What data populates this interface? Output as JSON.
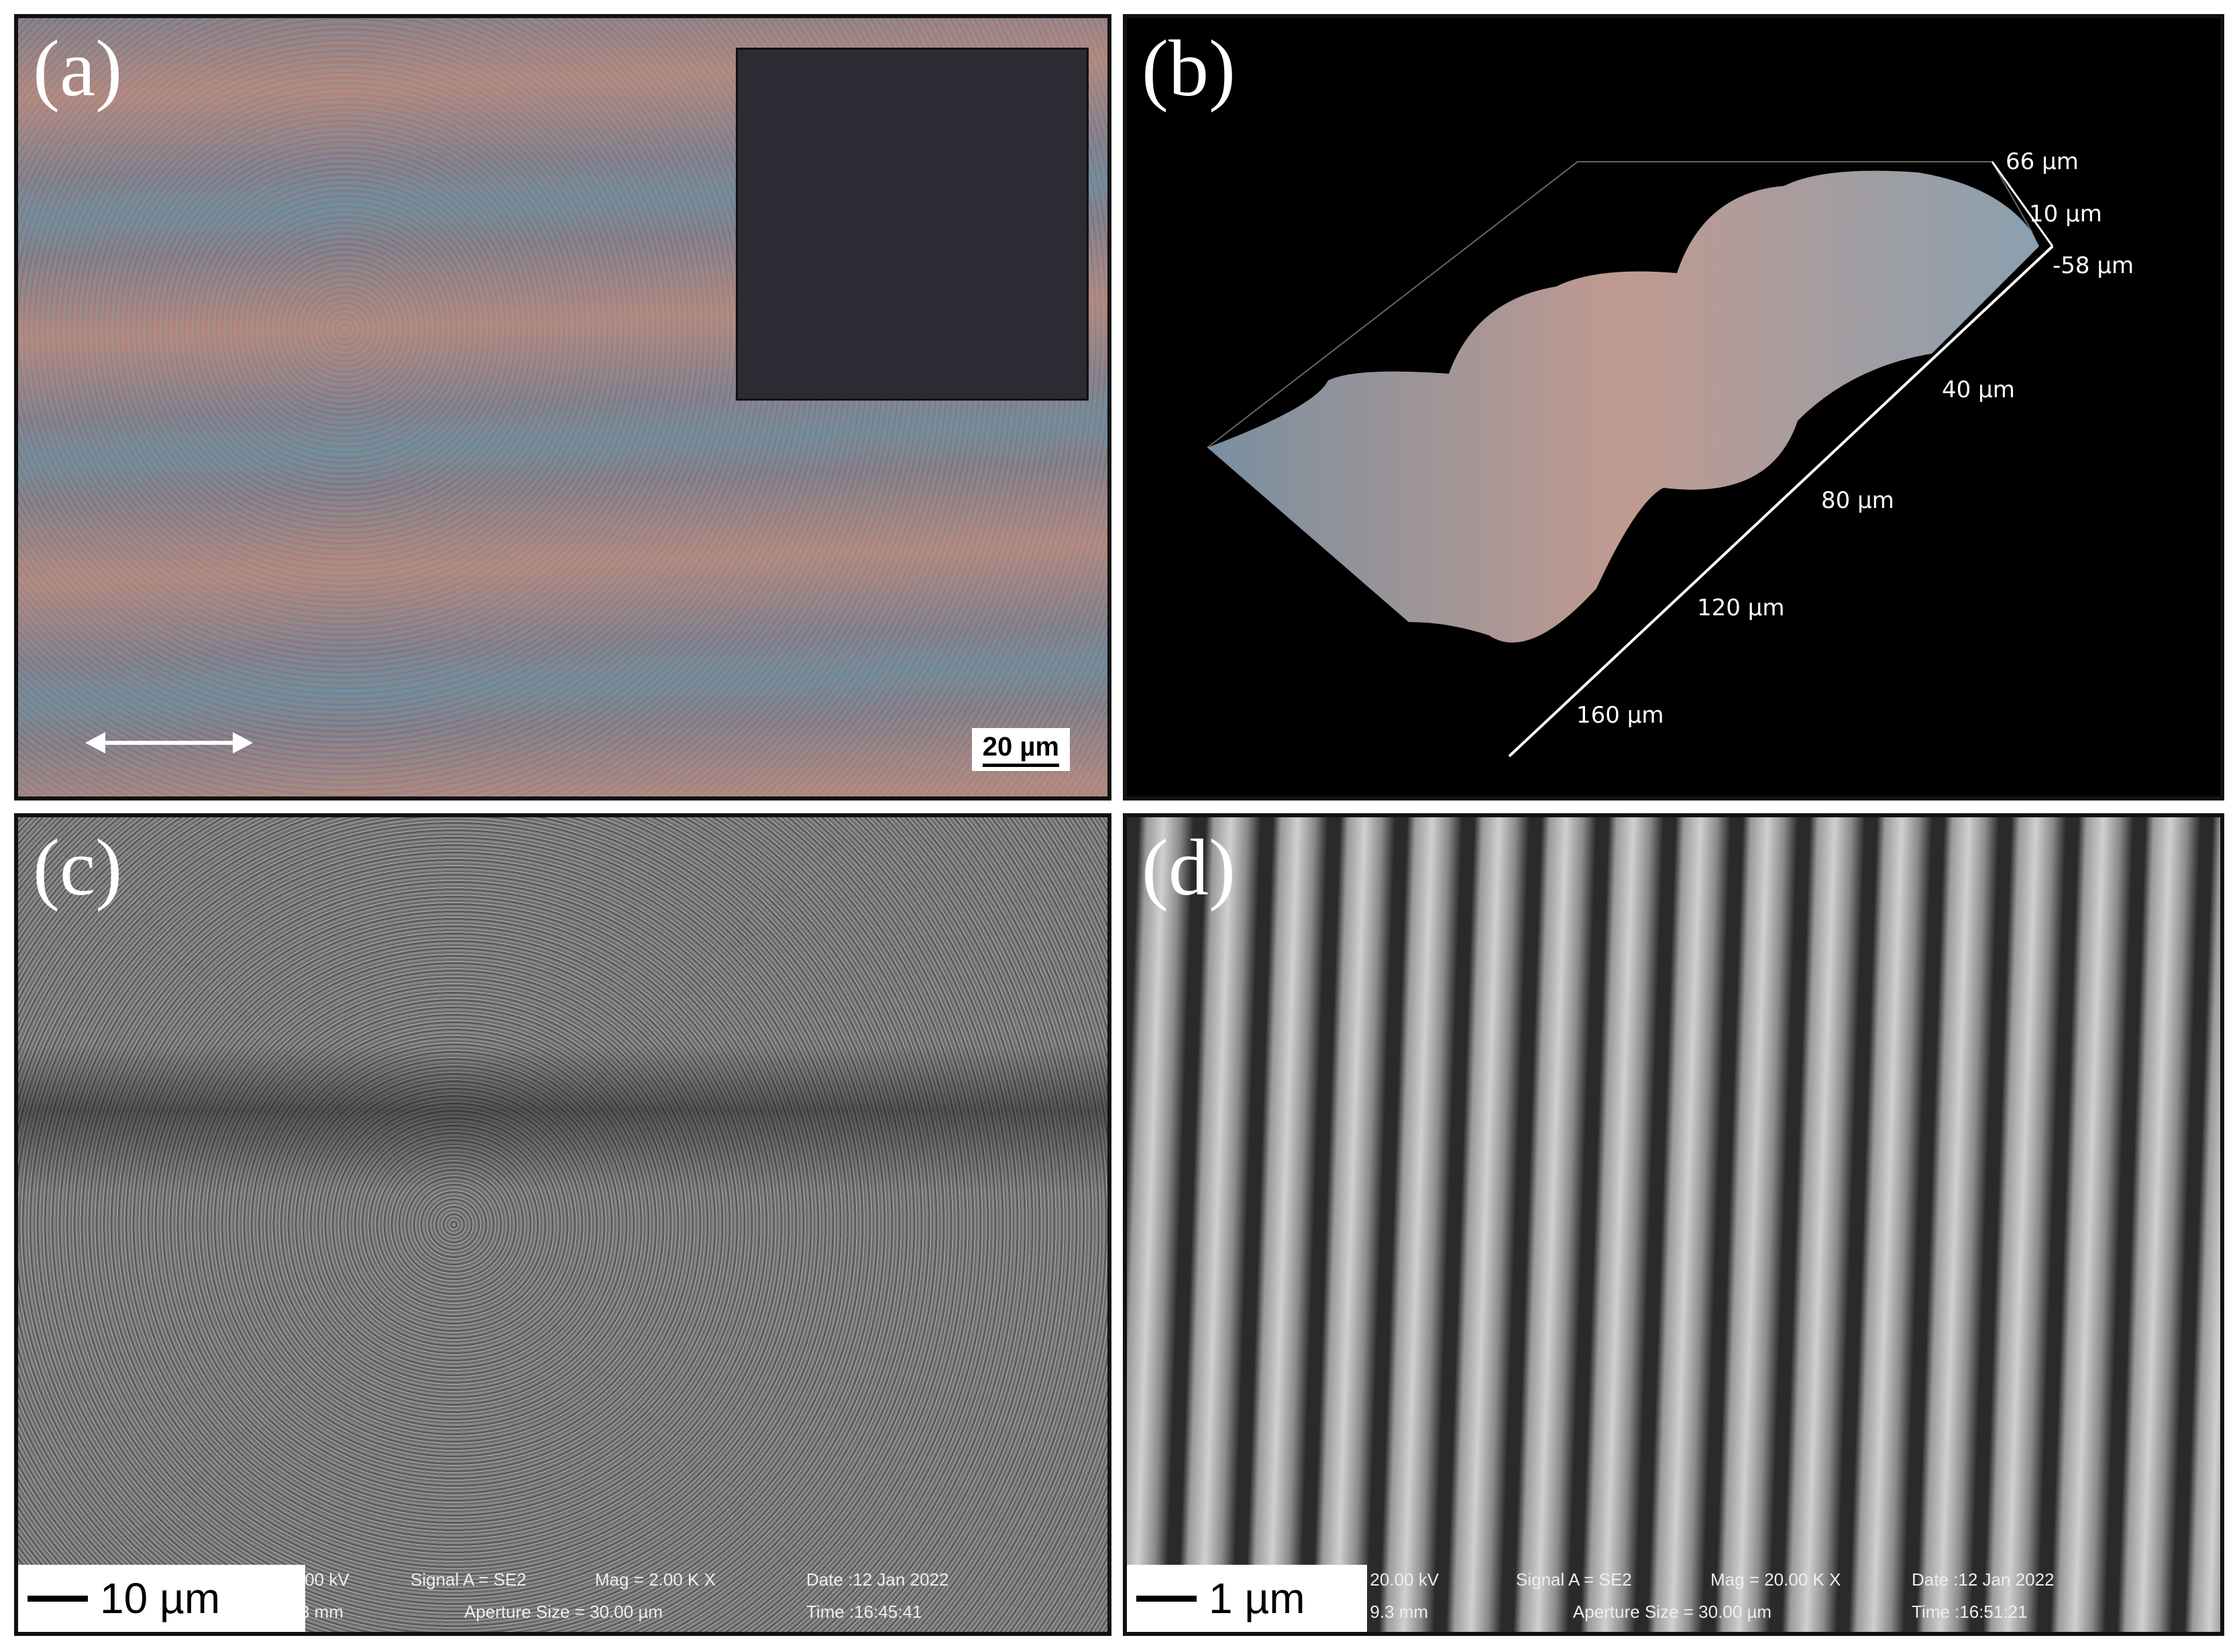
{
  "panels": {
    "a": {
      "label": "(a)",
      "scale_bar": "20 µm",
      "arrow_icon": "double-headed-arrow"
    },
    "b": {
      "label": "(b)",
      "z_ticks": [
        "66 µm",
        "10 µm",
        "-58 µm"
      ],
      "x_ticks": [
        "40 µm",
        "80 µm",
        "120 µm",
        "160 µm"
      ]
    },
    "c": {
      "label": "(c)",
      "scale_bar": "10 µm",
      "info": {
        "eht": ".00 kV",
        "signal": "Signal A = SE2",
        "mag": "Mag =  2.00 K X",
        "date": "Date :12 Jan 2022",
        "wd": "3 mm",
        "aperture": "Aperture Size = 30.00 µm",
        "time": "Time :16:45:41"
      }
    },
    "d": {
      "label": "(d)",
      "scale_bar": "1 µm",
      "info": {
        "eht": "= 20.00 kV",
        "signal": "Signal A = SE2",
        "mag": "Mag =  20.00 K X",
        "date": "Date :12 Jan 2022",
        "wd": "= 9.3 mm",
        "aperture": "Aperture Size = 30.00 µm",
        "time": "Time :16:51:21"
      }
    }
  }
}
